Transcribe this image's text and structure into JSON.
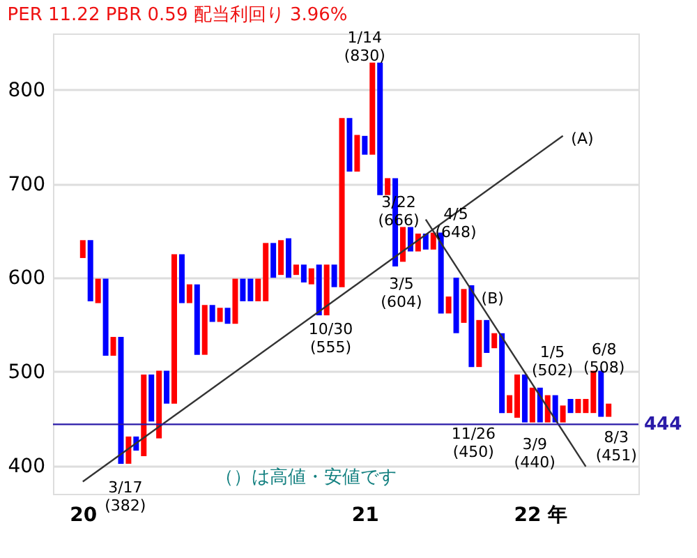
{
  "chart_data": {
    "type": "bar",
    "title": "PER 11.22 PBR 0.59 配当利回り 3.96%",
    "categories": [
      "20",
      null,
      null,
      null,
      null,
      null,
      null,
      null,
      null,
      null,
      null,
      null,
      null,
      null,
      null,
      null,
      null,
      null,
      null,
      null,
      null,
      null,
      null,
      null,
      null,
      null,
      null,
      null,
      null,
      null,
      null,
      null,
      null,
      null,
      null,
      null,
      null,
      "21",
      null,
      null,
      null,
      null,
      null,
      null,
      null,
      null,
      null,
      null,
      null,
      null,
      null,
      null,
      null,
      null,
      null,
      null,
      null,
      null,
      null,
      null,
      "22 年",
      null,
      null,
      null,
      null,
      null,
      null,
      null,
      null,
      null
    ],
    "base": [
      621,
      575,
      573,
      517,
      517,
      402,
      402,
      416,
      410,
      447,
      429,
      466,
      466,
      573,
      573,
      518,
      518,
      553,
      553,
      551,
      551,
      575,
      575,
      575,
      575,
      600,
      603,
      600,
      603,
      595,
      593,
      560,
      560,
      590,
      590,
      713,
      713,
      731,
      731,
      688,
      688,
      612,
      617,
      628,
      628,
      630,
      630,
      562,
      562,
      541,
      552,
      505,
      505,
      520,
      525,
      456,
      456,
      451,
      446,
      446,
      446,
      446,
      446,
      446,
      456,
      456,
      456,
      456,
      452,
      452
    ],
    "values": [
      19,
      65,
      26,
      82,
      20,
      135,
      29,
      15,
      87,
      50,
      72,
      35,
      159,
      52,
      20,
      75,
      53,
      18,
      15,
      17,
      48,
      24,
      24,
      24,
      62,
      37,
      37,
      42,
      11,
      19,
      17,
      54,
      54,
      24,
      180,
      57,
      39,
      20,
      98,
      141,
      18,
      94,
      37,
      26,
      19,
      17,
      18,
      86,
      18,
      59,
      36,
      87,
      50,
      35,
      16,
      85,
      19,
      46,
      51,
      37,
      37,
      29,
      29,
      18,
      15,
      15,
      15,
      45,
      49,
      14
    ],
    "colors": [
      "#ff0000",
      "#0000ff",
      "#ff0000",
      "#0000ff",
      "#ff0000",
      "#0000ff",
      "#ff0000",
      "#0000ff",
      "#ff0000",
      "#0000ff",
      "#ff0000",
      "#0000ff",
      "#ff0000",
      "#0000ff",
      "#ff0000",
      "#0000ff",
      "#ff0000",
      "#0000ff",
      "#ff0000",
      "#0000ff",
      "#ff0000",
      "#0000ff",
      "#0000ff",
      "#ff0000",
      "#ff0000",
      "#0000ff",
      "#ff0000",
      "#0000ff",
      "#ff0000",
      "#0000ff",
      "#ff0000",
      "#0000ff",
      "#ff0000",
      "#0000ff",
      "#ff0000",
      "#0000ff",
      "#ff0000",
      "#0000ff",
      "#ff0000",
      "#0000ff",
      "#ff0000",
      "#0000ff",
      "#ff0000",
      "#0000ff",
      "#ff0000",
      "#0000ff",
      "#ff0000",
      "#0000ff",
      "#ff0000",
      "#0000ff",
      "#ff0000",
      "#0000ff",
      "#ff0000",
      "#0000ff",
      "#ff0000",
      "#0000ff",
      "#ff0000",
      "#ff0000",
      "#0000ff",
      "#ff0000",
      "#0000ff",
      "#ff0000",
      "#0000ff",
      "#ff0000",
      "#0000ff",
      "#ff0000",
      "#ff0000",
      "#ff0000",
      "#0000ff",
      "#ff0000"
    ],
    "ylim": [
      370,
      860
    ],
    "yticks": [
      400,
      500,
      600,
      700,
      800
    ],
    "grid": "y",
    "series": [
      {
        "type": "line",
        "color": "#333333",
        "values": [
          383,
          null,
          null,
          null,
          null,
          null,
          null,
          null,
          null,
          null,
          null,
          null,
          null,
          null,
          null,
          null,
          null,
          null,
          null,
          null,
          null,
          null,
          null,
          null,
          null,
          null,
          null,
          null,
          null,
          null,
          null,
          null,
          null,
          null,
          null,
          null,
          null,
          null,
          null,
          null,
          null,
          null,
          null,
          null,
          null,
          null,
          null,
          null,
          null,
          null,
          null,
          null,
          null,
          null,
          null,
          null,
          null,
          null,
          null,
          null,
          null,
          null,
          null,
          751,
          null,
          null,
          null,
          null,
          null,
          null
        ]
      },
      {
        "type": "line",
        "color": "#333333",
        "values": [
          null,
          null,
          null,
          null,
          null,
          null,
          null,
          null,
          null,
          null,
          null,
          null,
          null,
          null,
          null,
          null,
          null,
          null,
          null,
          null,
          null,
          null,
          null,
          null,
          null,
          null,
          null,
          null,
          null,
          null,
          null,
          null,
          null,
          null,
          null,
          null,
          null,
          null,
          null,
          null,
          null,
          null,
          null,
          null,
          null,
          662,
          null,
          null,
          null,
          null,
          null,
          null,
          null,
          null,
          null,
          null,
          null,
          null,
          null,
          null,
          null,
          null,
          null,
          null,
          null,
          null,
          399,
          null,
          null,
          null
        ]
      }
    ],
    "ref_lines": [
      {
        "axis": "y",
        "value": 444,
        "label": "444",
        "color": "#2a1aa8"
      }
    ],
    "annotations": [
      "1/14\n(830)",
      "3/22\n(666)",
      "4/5\n(648)",
      "3/5\n(604)",
      "10/30\n(555)",
      "3/17\n(382)",
      "11/26\n(450)",
      "3/9\n(440)",
      "1/5\n(502)",
      "6/8\n(508)",
      "8/3\n(451)",
      "(A)",
      "(B)",
      "（）は高値・安値です"
    ]
  }
}
